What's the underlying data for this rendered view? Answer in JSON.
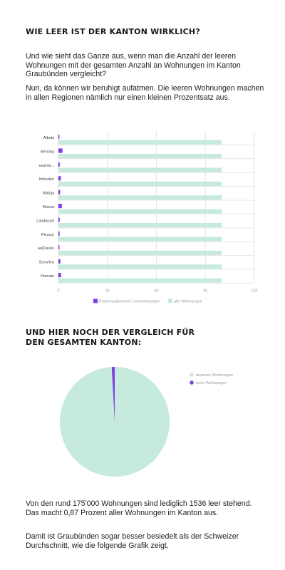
{
  "section1": {
    "title": "WIE LEER IST DER KANTON WIRKLICH?",
    "para1": "Und wie sieht das Ganze aus, wenn man die Anzahl der leeren Wohnungen mit der gesamten Anzahl an Wohnungen im Kanton Graubünden vergleicht?",
    "para2": "Nun, da können wir beruhigt aufatmen. Die leeren Wohnungen machen in allen Regionen nämlich nur einen kleinen Prozentsatz aus."
  },
  "section2": {
    "title_line1": "UND HIER NOCH DER VERGLEICH FÜR",
    "title_line2": "DEN GESAMTEN KANTON:",
    "para1": "Von den rund 175'000 Wohnungen sind lediglich 1536 leer stehend. Das macht 0,87 Prozent aller Wohnungen im Kanton aus.",
    "para2": "Damit ist Graubünden sogar besser besiedelt als der Schweizer Durchschnitt, wie die folgende Grafik zeigt."
  },
  "colors": {
    "empty": "#7b3fe4",
    "all": "#c6ebdc",
    "grid": "#e6e6e6",
    "axisText": "#9a9a9a"
  },
  "chart_data": [
    {
      "type": "bar",
      "orientation": "horizontal",
      "categories": [
        "Albula",
        "Bernina",
        "esa/Va...",
        "Imboden",
        "Maloja",
        "Moesa",
        "Landquart",
        "Plessur",
        "au/Davos",
        "Surselva",
        "Viamala"
      ],
      "series": [
        {
          "name": "Prozentualeranteil Leerwohnungen",
          "color": "#7b3fe4",
          "values": [
            0.5,
            2.5,
            0.8,
            1.5,
            1.0,
            2.1,
            0.8,
            0.7,
            0.6,
            1.2,
            1.6
          ]
        },
        {
          "name": "alle Wohnungen",
          "color": "#c6ebdc",
          "values": [
            100,
            100,
            100,
            100,
            100,
            100,
            100,
            100,
            100,
            100,
            100
          ]
        }
      ],
      "xlim": [
        0,
        120
      ],
      "xticks": [
        "0",
        "30",
        "60",
        "90",
        "120"
      ],
      "grid": true,
      "legend": "bottom"
    },
    {
      "type": "pie",
      "labels": [
        "besetzte Wohnungen",
        "leere Wohnungen"
      ],
      "values": [
        99.13,
        0.87
      ],
      "colors": [
        "#c6ebdc",
        "#7b3fe4"
      ],
      "legend": "right"
    }
  ]
}
